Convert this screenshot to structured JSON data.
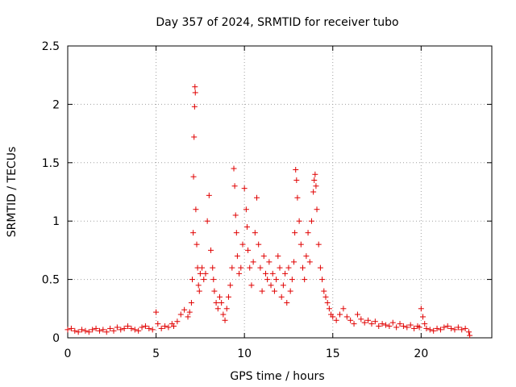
{
  "chart_data": {
    "type": "scatter",
    "title": "Day 357 of 2024, SRMTID for receiver tubo",
    "xlabel": "GPS time / hours",
    "ylabel": "SRMTID / TECUs",
    "xlim": [
      0,
      24
    ],
    "ylim": [
      0,
      2.5
    ],
    "grid": true,
    "marker": "+",
    "color": "#e00000",
    "x_ticks": [
      0,
      5,
      10,
      15,
      20
    ],
    "x_tick_labels": [
      "0",
      "5",
      "10",
      "15",
      "20"
    ],
    "y_ticks": [
      0,
      0.5,
      1,
      1.5,
      2,
      2.5
    ],
    "y_tick_labels": [
      "0",
      "0.5",
      "1",
      "1.5",
      "2",
      "2.5"
    ],
    "series": [
      {
        "name": "SRMTID",
        "x": [
          0.0,
          0.2,
          0.4,
          0.6,
          0.8,
          1.0,
          1.2,
          1.4,
          1.6,
          1.8,
          2.0,
          2.2,
          2.4,
          2.6,
          2.8,
          3.0,
          3.2,
          3.4,
          3.6,
          3.8,
          4.0,
          4.2,
          4.4,
          4.6,
          4.8,
          5.0,
          5.1,
          5.3,
          5.5,
          5.7,
          5.9,
          6.0,
          6.2,
          6.4,
          6.6,
          6.8,
          6.9,
          7.0,
          7.05,
          7.1,
          7.12,
          7.15,
          7.18,
          7.2,
          7.22,
          7.25,
          7.3,
          7.35,
          7.4,
          7.45,
          7.5,
          7.6,
          7.7,
          7.8,
          7.9,
          8.0,
          8.1,
          8.2,
          8.25,
          8.3,
          8.4,
          8.5,
          8.6,
          8.7,
          8.8,
          8.9,
          9.0,
          9.1,
          9.2,
          9.3,
          9.4,
          9.45,
          9.5,
          9.55,
          9.6,
          9.7,
          9.8,
          9.9,
          10.0,
          10.1,
          10.15,
          10.2,
          10.3,
          10.4,
          10.5,
          10.6,
          10.7,
          10.8,
          10.9,
          11.0,
          11.1,
          11.2,
          11.3,
          11.4,
          11.5,
          11.6,
          11.7,
          11.8,
          11.9,
          12.0,
          12.1,
          12.2,
          12.3,
          12.4,
          12.5,
          12.6,
          12.7,
          12.8,
          12.85,
          12.9,
          12.95,
          13.0,
          13.1,
          13.2,
          13.3,
          13.4,
          13.5,
          13.6,
          13.7,
          13.8,
          13.9,
          13.95,
          14.0,
          14.05,
          14.1,
          14.2,
          14.3,
          14.4,
          14.5,
          14.6,
          14.7,
          14.8,
          14.9,
          15.0,
          15.2,
          15.4,
          15.6,
          15.8,
          16.0,
          16.2,
          16.4,
          16.6,
          16.8,
          17.0,
          17.2,
          17.4,
          17.6,
          17.8,
          18.0,
          18.2,
          18.4,
          18.6,
          18.8,
          19.0,
          19.2,
          19.4,
          19.6,
          19.8,
          19.9,
          20.0,
          20.1,
          20.2,
          20.3,
          20.5,
          20.7,
          20.9,
          21.1,
          21.3,
          21.5,
          21.7,
          21.9,
          22.1,
          22.3,
          22.5,
          22.7,
          22.75
        ],
        "y": [
          0.07,
          0.08,
          0.06,
          0.05,
          0.07,
          0.06,
          0.05,
          0.07,
          0.08,
          0.06,
          0.07,
          0.05,
          0.08,
          0.06,
          0.09,
          0.07,
          0.08,
          0.1,
          0.08,
          0.07,
          0.06,
          0.09,
          0.1,
          0.08,
          0.07,
          0.22,
          0.12,
          0.08,
          0.1,
          0.09,
          0.12,
          0.1,
          0.14,
          0.2,
          0.24,
          0.18,
          0.22,
          0.3,
          0.5,
          0.9,
          1.38,
          1.72,
          1.98,
          2.15,
          2.1,
          1.1,
          0.8,
          0.6,
          0.45,
          0.4,
          0.55,
          0.6,
          0.5,
          0.55,
          1.0,
          1.22,
          0.75,
          0.6,
          0.5,
          0.4,
          0.3,
          0.25,
          0.35,
          0.3,
          0.2,
          0.15,
          0.25,
          0.35,
          0.45,
          0.6,
          1.45,
          1.3,
          1.05,
          0.9,
          0.7,
          0.55,
          0.6,
          0.8,
          1.28,
          1.1,
          0.95,
          0.75,
          0.6,
          0.45,
          0.65,
          0.9,
          1.2,
          0.8,
          0.6,
          0.4,
          0.7,
          0.55,
          0.5,
          0.65,
          0.45,
          0.55,
          0.4,
          0.5,
          0.7,
          0.6,
          0.35,
          0.45,
          0.55,
          0.3,
          0.6,
          0.4,
          0.5,
          0.65,
          0.9,
          1.44,
          1.35,
          1.2,
          1.0,
          0.8,
          0.6,
          0.5,
          0.7,
          0.9,
          0.65,
          1.0,
          1.25,
          1.35,
          1.4,
          1.3,
          1.1,
          0.8,
          0.6,
          0.5,
          0.4,
          0.35,
          0.3,
          0.25,
          0.2,
          0.18,
          0.15,
          0.2,
          0.25,
          0.18,
          0.15,
          0.12,
          0.2,
          0.16,
          0.13,
          0.15,
          0.12,
          0.14,
          0.1,
          0.12,
          0.11,
          0.1,
          0.13,
          0.09,
          0.12,
          0.1,
          0.09,
          0.11,
          0.08,
          0.1,
          0.09,
          0.25,
          0.18,
          0.12,
          0.08,
          0.07,
          0.06,
          0.08,
          0.07,
          0.09,
          0.1,
          0.08,
          0.07,
          0.09,
          0.07,
          0.08,
          0.05,
          0.02
        ]
      }
    ]
  }
}
